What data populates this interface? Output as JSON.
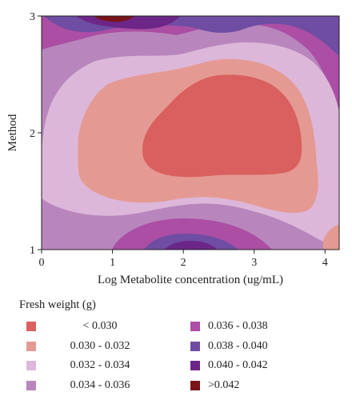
{
  "chart_data": {
    "type": "heatmap",
    "subtype": "filled-contour",
    "title": "",
    "xlabel": "Log Metabolite concentration (ug/mL)",
    "ylabel": "Method",
    "xlim": [
      0,
      4.2
    ],
    "ylim": [
      1,
      3
    ],
    "x_ticks": [
      "0",
      "1",
      "2",
      "3",
      "4"
    ],
    "y_ticks": [
      "1",
      "2",
      "3"
    ],
    "grid": false,
    "legend_title": "Fresh weight (g)",
    "legend_position": "bottom",
    "levels": [
      {
        "label": "< 0.030",
        "range": [
          null,
          0.03
        ],
        "color": "#d9605f"
      },
      {
        "label": "0.030 - 0.032",
        "range": [
          0.03,
          0.032
        ],
        "color": "#e49a93"
      },
      {
        "label": "0.032 - 0.034",
        "range": [
          0.032,
          0.034
        ],
        "color": "#ddb7da"
      },
      {
        "label": "0.034 - 0.036",
        "range": [
          0.034,
          0.036
        ],
        "color": "#b886bd"
      },
      {
        "label": "0.036 - 0.038",
        "range": [
          0.036,
          0.038
        ],
        "color": "#ab4ea4"
      },
      {
        "label": "0.038 - 0.040",
        "range": [
          0.038,
          0.04
        ],
        "color": "#6e4da2"
      },
      {
        "label": "0.040 - 0.042",
        "range": [
          0.04,
          0.042
        ],
        "color": "#6c2688"
      },
      {
        "label": ">0.042",
        "range": [
          0.042,
          null
        ],
        "color": "#7a1318"
      }
    ]
  }
}
